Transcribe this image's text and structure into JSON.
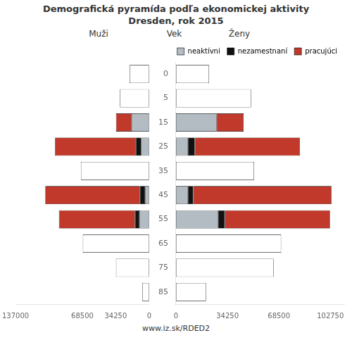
{
  "chart_data": [
    {
      "type": "bar",
      "orientation": "horizontal",
      "stacked": true,
      "title": "Demografická pyramída podľa ekonomickej aktivity",
      "subtitle": "Dresden, rok 2015",
      "annotations": [
        "Muži",
        "www.iz.sk/RDED2"
      ],
      "categories": [
        85,
        75,
        65,
        55,
        45,
        35,
        25,
        15,
        5,
        0
      ],
      "series": [
        {
          "name": "neaktívni",
          "color": "#b3bcc2",
          "colors": [
            "#ffffff",
            "#ffffff",
            "#ffffff",
            "#b3bcc2",
            "#b3bcc2",
            "#ffffff",
            "#b3bcc2",
            "#b3bcc2",
            "#ffffff",
            "#ffffff"
          ],
          "values": [
            7000,
            34000,
            68000,
            10000,
            4000,
            70000,
            8000,
            18000,
            30000,
            20000
          ]
        },
        {
          "name": "nezamestnaní",
          "color": "#111111",
          "values": [
            0,
            0,
            0,
            4500,
            5500,
            0,
            5500,
            0,
            0,
            0
          ]
        },
        {
          "name": "pracujúci",
          "color": "#c0392b",
          "values": [
            0,
            0,
            0,
            78000,
            97000,
            0,
            83000,
            16000,
            0,
            0
          ]
        }
      ],
      "xlim": [
        137000,
        0
      ],
      "xticks": [
        137000,
        68500,
        34250,
        0
      ],
      "grid": false,
      "tick_labels": "x"
    },
    {
      "type": "bar",
      "orientation": "horizontal",
      "stacked": true,
      "annotations": [
        "Ženy"
      ],
      "y_label": "Vek",
      "categories": [
        85,
        75,
        65,
        55,
        45,
        35,
        25,
        15,
        5,
        0
      ],
      "series": [
        {
          "name": "neaktívni",
          "color": "#b3bcc2",
          "colors": [
            "#ffffff",
            "#ffffff",
            "#ffffff",
            "#b3bcc2",
            "#b3bcc2",
            "#ffffff",
            "#b3bcc2",
            "#b3bcc2",
            "#ffffff",
            "#ffffff"
          ],
          "values": [
            20000,
            65000,
            70000,
            28000,
            8000,
            52000,
            8000,
            27000,
            50000,
            22000
          ]
        },
        {
          "name": "nezamestnaní",
          "color": "#111111",
          "values": [
            0,
            0,
            0,
            4500,
            3500,
            0,
            4500,
            0,
            0,
            0
          ]
        },
        {
          "name": "pracujúci",
          "color": "#c0392b",
          "values": [
            0,
            0,
            0,
            70000,
            92000,
            0,
            70000,
            18000,
            0,
            0
          ]
        }
      ],
      "xlim": [
        0,
        112000
      ],
      "xticks": [
        0,
        34250,
        68500,
        102750
      ],
      "grid": false,
      "legend": "upper right"
    }
  ]
}
